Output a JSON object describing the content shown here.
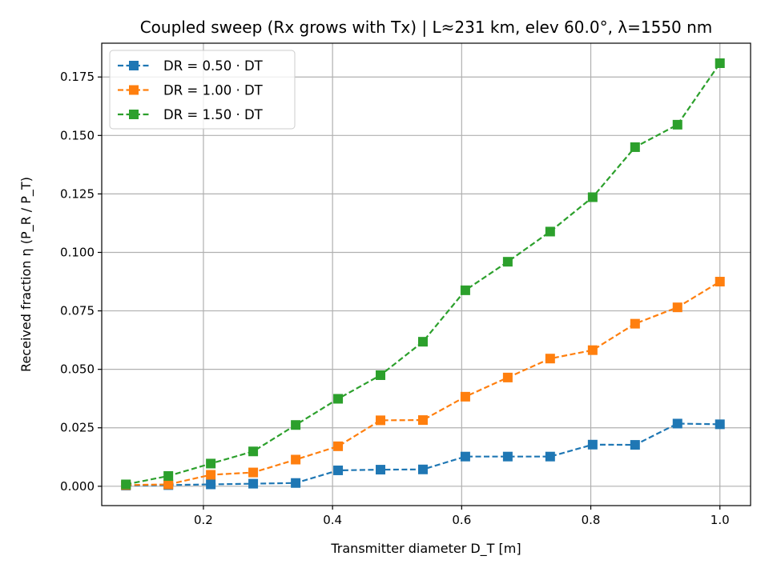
{
  "chart_data": {
    "type": "line",
    "title": "Coupled sweep (Rx grows with Tx) | L≈231 km, elev 60.0°, λ=1550 nm",
    "xlabel": "Transmitter diameter D_T [m]",
    "ylabel": "Received fraction η (P_R / P_T)",
    "xlim": [
      0.0425,
      1.0475
    ],
    "ylim": [
      -0.00827,
      0.18945
    ],
    "xticks": [
      0.2,
      0.4,
      0.6,
      0.8,
      1.0
    ],
    "xtick_labels": [
      "0.2",
      "0.4",
      "0.6",
      "0.8",
      "1.0"
    ],
    "yticks": [
      0.0,
      0.025,
      0.05,
      0.075,
      0.1,
      0.125,
      0.15,
      0.175
    ],
    "ytick_labels": [
      "0.000",
      "0.025",
      "0.050",
      "0.075",
      "0.100",
      "0.125",
      "0.150",
      "0.175"
    ],
    "grid": true,
    "legend_position": "upper-left",
    "x": [
      0.08,
      0.1457,
      0.2114,
      0.2771,
      0.3429,
      0.4086,
      0.4743,
      0.54,
      0.6057,
      0.6714,
      0.7371,
      0.8029,
      0.8686,
      0.9343,
      1.0
    ],
    "series": [
      {
        "name": "DR = 0.50 · DT",
        "color": "#1f77b4",
        "marker": "square",
        "linestyle": "dashed",
        "values": [
          0.0003,
          0.0005,
          0.0008,
          0.0011,
          0.0014,
          0.0068,
          0.0071,
          0.0072,
          0.0127,
          0.0127,
          0.0127,
          0.0178,
          0.0177,
          0.0268,
          0.0265
        ]
      },
      {
        "name": "DR = 1.00 · DT",
        "color": "#ff7f0e",
        "marker": "square",
        "linestyle": "dashed",
        "values": [
          0.0005,
          0.0008,
          0.0049,
          0.0059,
          0.0114,
          0.0171,
          0.0282,
          0.0283,
          0.0383,
          0.0465,
          0.0546,
          0.0582,
          0.0695,
          0.0765,
          0.0875
        ]
      },
      {
        "name": "DR = 1.50 · DT",
        "color": "#2ca02c",
        "marker": "square",
        "linestyle": "dashed",
        "values": [
          0.0008,
          0.0044,
          0.0097,
          0.0149,
          0.0262,
          0.0374,
          0.0475,
          0.0618,
          0.0838,
          0.096,
          0.1089,
          0.1236,
          0.145,
          0.1546,
          0.1809
        ]
      }
    ]
  }
}
